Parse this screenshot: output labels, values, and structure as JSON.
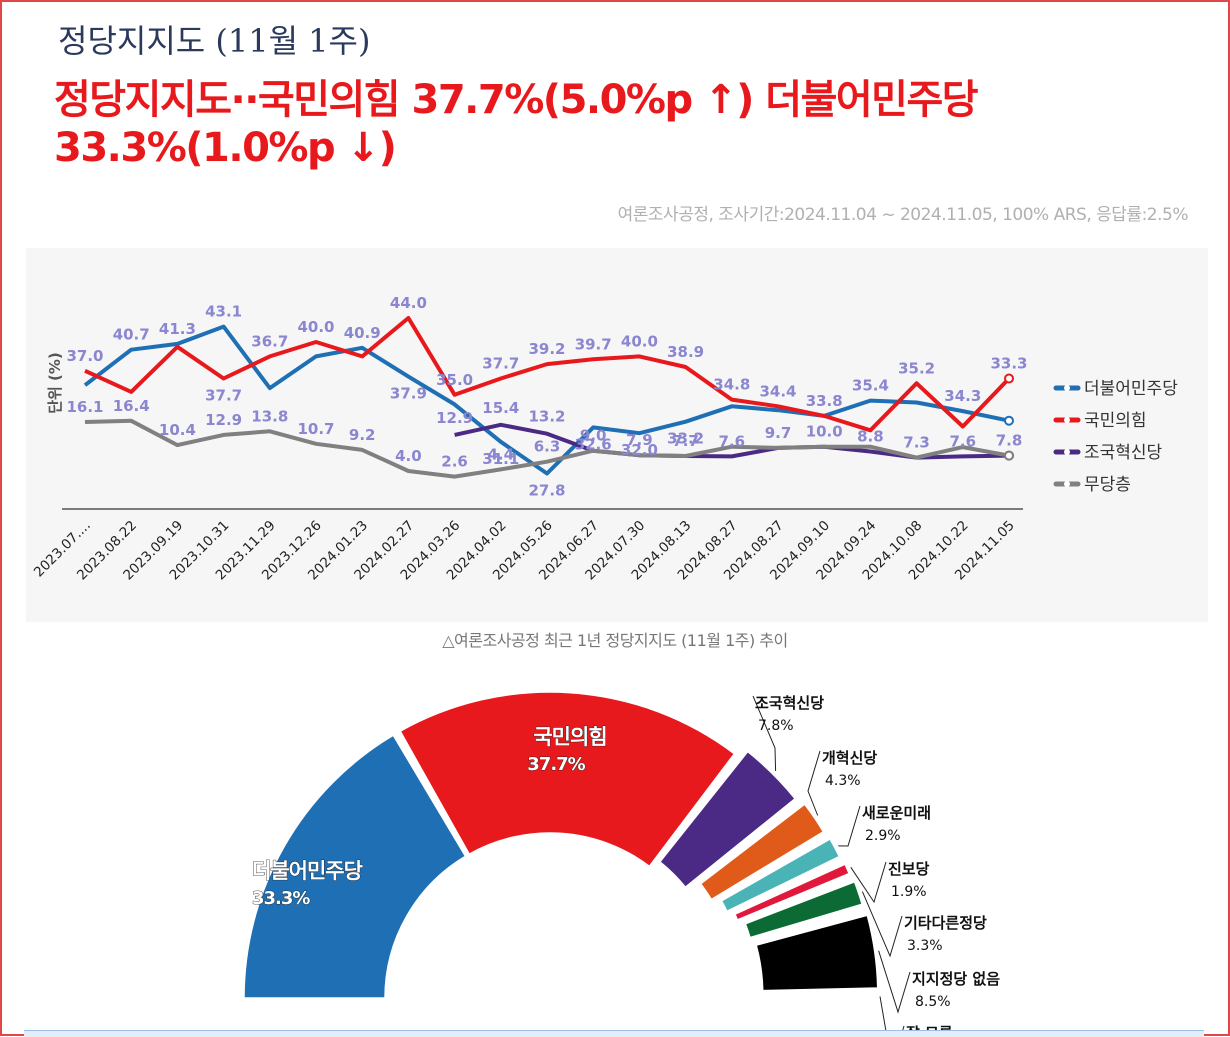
{
  "header": {
    "title": "정당지지도 (11월 1주)",
    "headline_line1": "정당지지도··국민의힘 37.7%(5.0%p ↑) 더불어민주당",
    "headline_line2": "33.3%(1.0%p ↓)",
    "survey_info": "여론조사공정, 조사기간:2024.11.04 ~ 2024.11.05, 100% ARS, 응답률:2.5%"
  },
  "caption": "△여론조사공정 최근 1년 정당지지도 (11월 1주) 추이",
  "colors": {
    "democratic": "#1f6fb5",
    "ppp": "#e8191c",
    "rebuild": "#4b2a86",
    "undecided": "#808080",
    "reform": "#e05a1a",
    "newfuture": "#4ab3b6",
    "progressive": "#e0193c",
    "others": "#0c6b34",
    "none": "#000000",
    "label_color": "#8a86d0"
  },
  "chart_data": [
    {
      "type": "line",
      "ylabel": "단위 (%)",
      "xlabel": "",
      "grid": false,
      "legend_position": "right",
      "categories": [
        "2023.07....",
        "2023.08.22",
        "2023.09.19",
        "2023.10.31",
        "2023.11.29",
        "2023.12.26",
        "2024.01.23",
        "2024.02.27",
        "2024.03.26",
        "2024.04.02",
        "2024.05.26",
        "2024.06.27",
        "2024.07.30",
        "2024.08.13",
        "2024.08.27",
        "2024.08.27",
        "2024.09.10",
        "2024.09.24",
        "2024.10.08",
        "2024.10.22",
        "2024.11.05"
      ],
      "series": [
        {
          "name": "더불어민주당",
          "color": "#1f6fb5",
          "values": [
            37.0,
            40.7,
            41.3,
            43.1,
            36.7,
            40.0,
            40.9,
            37.9,
            35.0,
            31.1,
            27.8,
            32.6,
            32.0,
            33.2,
            34.8,
            34.4,
            33.8,
            35.4,
            35.2,
            34.3,
            33.3
          ]
        },
        {
          "name": "국민의힘",
          "color": "#e8191c",
          "values": [
            38.5,
            36.3,
            41.0,
            37.7,
            40.0,
            41.5,
            40.0,
            44.0,
            36.0,
            37.7,
            39.2,
            39.7,
            40.0,
            38.9,
            35.5,
            34.8,
            33.8,
            32.3,
            37.2,
            32.7,
            37.7
          ]
        },
        {
          "name": "조국혁신당",
          "color": "#4b2a86",
          "values": [
            null,
            null,
            null,
            null,
            null,
            null,
            null,
            null,
            12.9,
            15.4,
            13.2,
            9.0,
            7.9,
            7.7,
            7.6,
            9.7,
            10.0,
            8.8,
            7.3,
            7.6,
            7.8
          ]
        },
        {
          "name": "무당층",
          "color": "#808080",
          "values": [
            16.1,
            16.4,
            10.4,
            12.9,
            13.8,
            10.7,
            9.2,
            4.0,
            2.6,
            4.4,
            6.3,
            9.0,
            7.9,
            7.7,
            10.0,
            9.7,
            10.0,
            10.0,
            7.3,
            9.9,
            7.8
          ]
        }
      ],
      "data_labels": {
        "top": [
          "37.0",
          "40.7",
          "41.3",
          "43.1",
          "36.7",
          "40.0",
          "40.9",
          "44.0",
          "35.0",
          "37.7",
          "39.2",
          "39.7",
          "40.0",
          "38.9",
          "34.8",
          "34.4",
          "33.8",
          "35.4",
          "35.2",
          "34.3",
          "33.3"
        ],
        "top_extra": [
          {
            "index": 3,
            "text": "37.7"
          },
          {
            "index": 7,
            "text": "37.9"
          },
          {
            "index": 9,
            "text": "31.1"
          },
          {
            "index": 10,
            "text": "27.8"
          },
          {
            "index": 11,
            "text": "32.6"
          },
          {
            "index": 12,
            "text": "32.0"
          },
          {
            "index": 13,
            "text": "33.2"
          }
        ],
        "bottom": [
          "16.1",
          "16.4",
          "10.4",
          "12.9",
          "13.8",
          "10.7",
          "9.2",
          "4.0",
          "2.6",
          "4.4",
          "6.3",
          "9.0",
          "7.9",
          "7.7",
          "7.6",
          "9.7",
          "10.0",
          "8.8",
          "7.3",
          "7.6",
          "7.8"
        ],
        "bottom_extra": [
          {
            "index": 8,
            "text": "12.9"
          },
          {
            "index": 9,
            "text": "15.4"
          },
          {
            "index": 10,
            "text": "13.2"
          }
        ]
      }
    },
    {
      "type": "pie",
      "variant": "half-donut",
      "slices": [
        {
          "label": "더불어민주당",
          "value": 33.3,
          "display": "33.3%",
          "color": "#1f6fb5"
        },
        {
          "label": "국민의힘",
          "value": 37.7,
          "display": "37.7%",
          "color": "#e8191c"
        },
        {
          "label": "조국혁신당",
          "value": 7.8,
          "display": "7.8%",
          "color": "#4b2a86"
        },
        {
          "label": "개혁신당",
          "value": 4.3,
          "display": "4.3%",
          "color": "#e05a1a"
        },
        {
          "label": "새로운미래",
          "value": 2.9,
          "display": "2.9%",
          "color": "#4ab3b6"
        },
        {
          "label": "진보당",
          "value": 1.9,
          "display": "1.9%",
          "color": "#e0193c"
        },
        {
          "label": "기타다른정당",
          "value": 3.3,
          "display": "3.3%",
          "color": "#0c6b34"
        },
        {
          "label": "지지정당 없음",
          "value": 8.5,
          "display": "8.5%",
          "color": "#000000"
        },
        {
          "label": "잘 모름",
          "value": 0.3,
          "display": "",
          "color": "#d0d0d0"
        }
      ]
    }
  ]
}
